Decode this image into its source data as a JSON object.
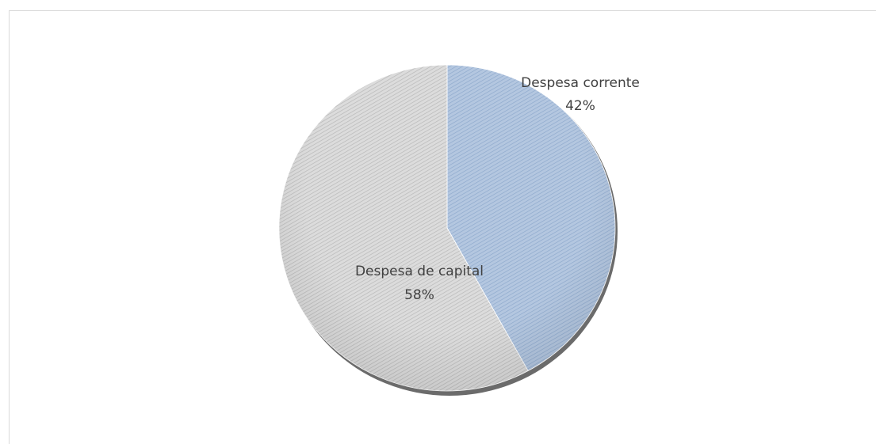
{
  "chart_data": {
    "type": "pie",
    "title": "",
    "start_angle_deg": 0,
    "direction": "clockwise",
    "legend": "none",
    "slices": [
      {
        "label": "Despesa corrente",
        "value": 42,
        "value_label": "42%",
        "color": "#b4c7e0",
        "hatch_color": "#8ea9cc"
      },
      {
        "label": "Despesa de capital",
        "value": 58,
        "value_label": "58%",
        "color": "#dcdcdc",
        "hatch_color": "#b8b8b8"
      }
    ]
  }
}
